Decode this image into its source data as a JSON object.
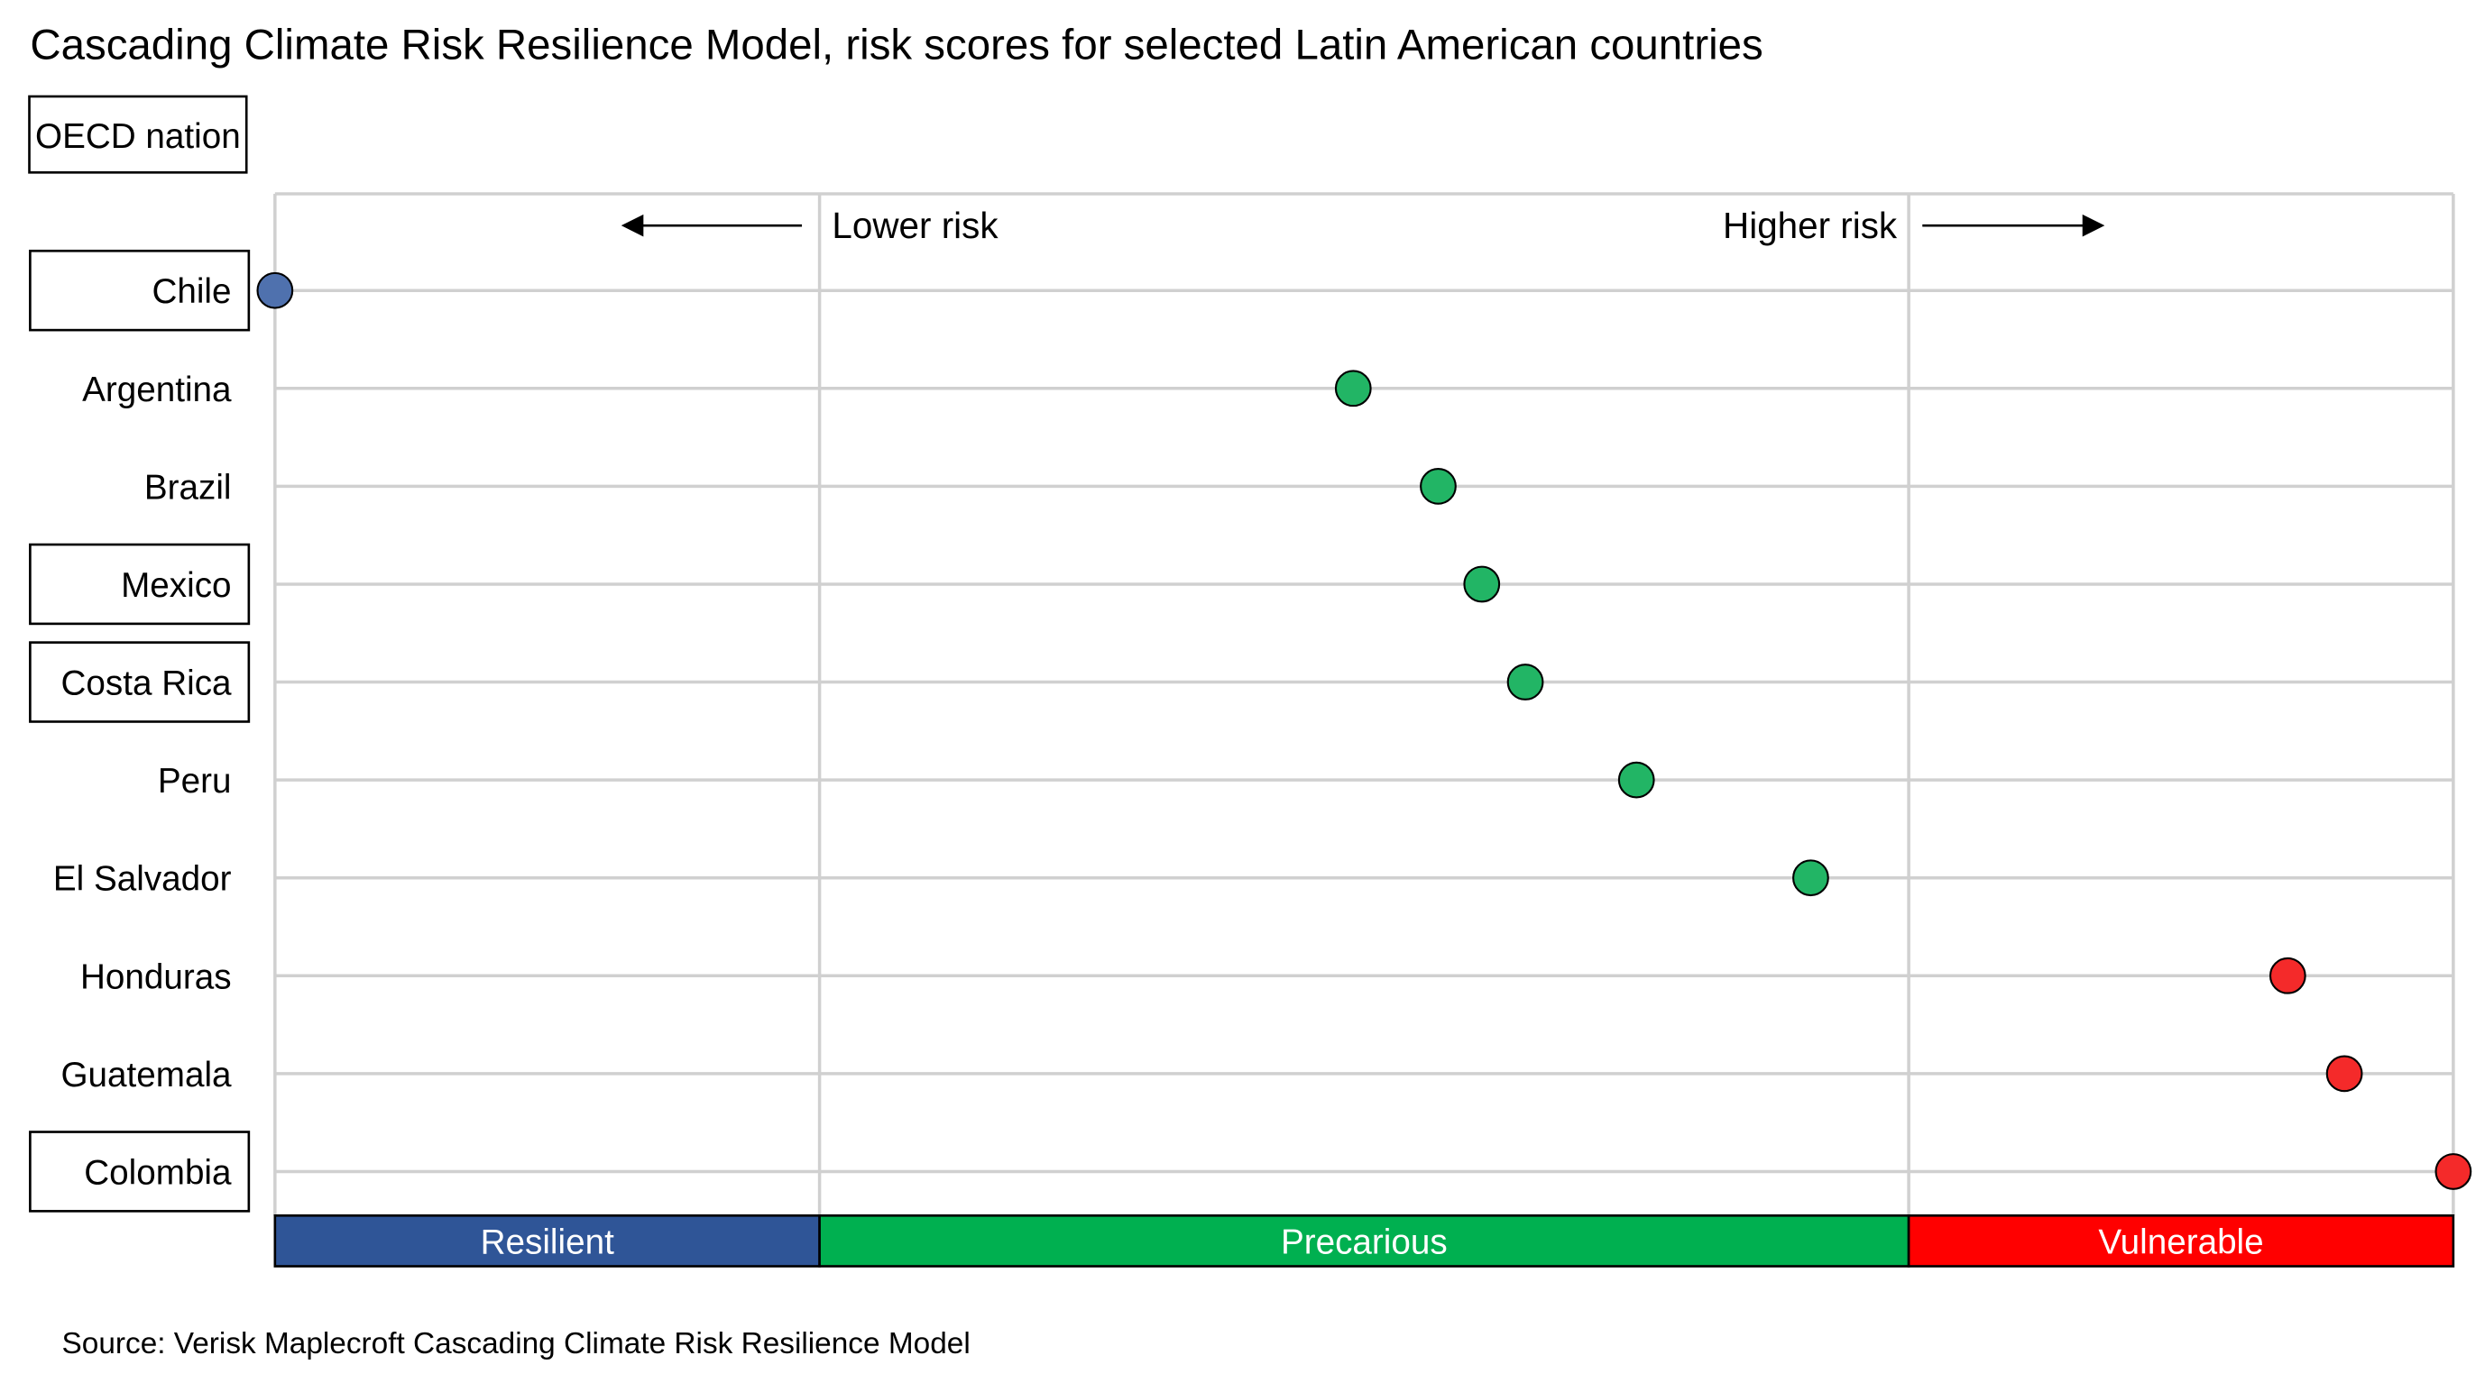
{
  "chart_data": {
    "type": "scatter",
    "title": "Cascading Climate Risk Resilience Model, risk scores for selected Latin American countries",
    "legend": {
      "label": "OECD nation",
      "placement": "top-left"
    },
    "annotations": {
      "lower": "Lower risk",
      "higher": "Higher risk"
    },
    "xlim": [
      0,
      10
    ],
    "bands": [
      {
        "label": "Resilient",
        "from": 0,
        "to": 2.5,
        "color": "#2F5597"
      },
      {
        "label": "Precarious",
        "from": 2.5,
        "to": 7.5,
        "color": "#00B050"
      },
      {
        "label": "Vulnerable",
        "from": 7.5,
        "to": 10,
        "color": "#FF0000"
      }
    ],
    "points": [
      {
        "country": "Chile",
        "value": 0.0,
        "oecd": true,
        "color": "#4F71AE"
      },
      {
        "country": "Argentina",
        "value": 4.95,
        "oecd": false,
        "color": "#22B565"
      },
      {
        "country": "Brazil",
        "value": 5.34,
        "oecd": false,
        "color": "#22B565"
      },
      {
        "country": "Mexico",
        "value": 5.54,
        "oecd": true,
        "color": "#22B565"
      },
      {
        "country": "Costa Rica",
        "value": 5.74,
        "oecd": true,
        "color": "#22B565"
      },
      {
        "country": "Peru",
        "value": 6.25,
        "oecd": false,
        "color": "#22B565"
      },
      {
        "country": "El Salvador",
        "value": 7.05,
        "oecd": false,
        "color": "#22B565"
      },
      {
        "country": "Honduras",
        "value": 9.24,
        "oecd": false,
        "color": "#F42A2A"
      },
      {
        "country": "Guatemala",
        "value": 9.5,
        "oecd": false,
        "color": "#F42A2A"
      },
      {
        "country": "Colombia",
        "value": 10.0,
        "oecd": true,
        "color": "#F42A2A"
      }
    ],
    "source": "Source: Verisk Maplecroft Cascading Climate Risk Resilience Model"
  }
}
